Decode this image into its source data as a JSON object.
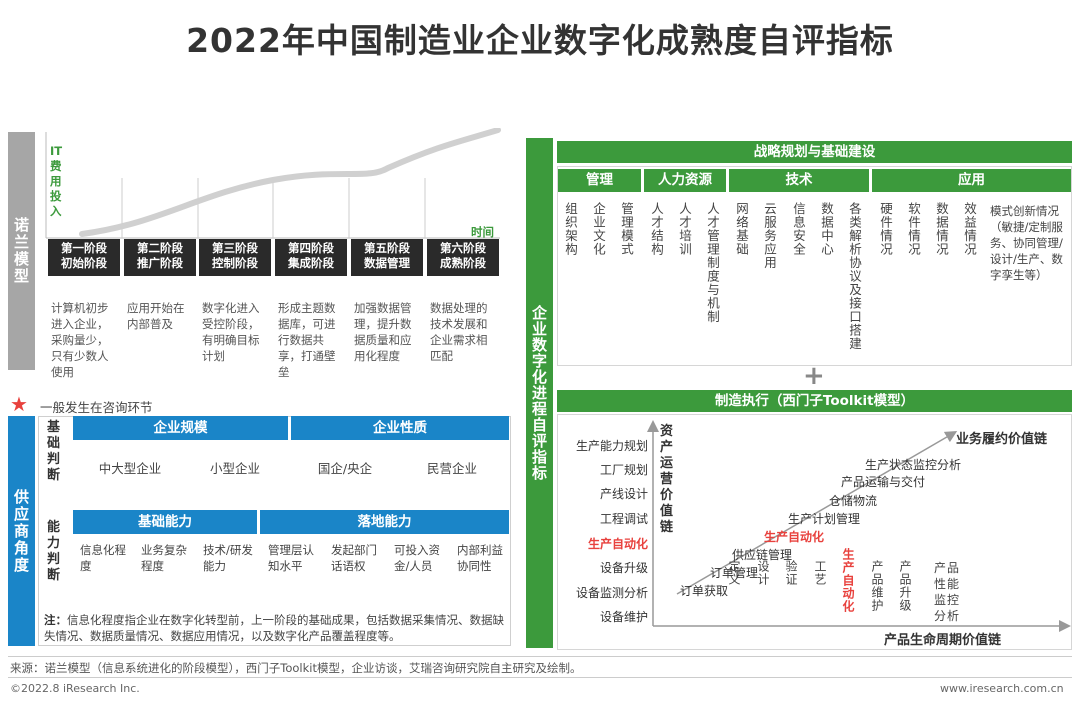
{
  "title": "2022年中国制造业企业数字化成熟度自评指标",
  "nolan": {
    "side_label": "诺兰模型",
    "yaxis": "IT费用投入",
    "xaxis": "时间",
    "stages": [
      {
        "name": "第一阶段",
        "sub": "初始阶段",
        "desc": "计算机初步进入企业，采购量少，只有少数人使用"
      },
      {
        "name": "第二阶段",
        "sub": "推广阶段",
        "desc": "应用开始在内部普及"
      },
      {
        "name": "第三阶段",
        "sub": "控制阶段",
        "desc": "数字化进入受控阶段，有明确目标计划"
      },
      {
        "name": "第四阶段",
        "sub": "集成阶段",
        "desc": "形成主题数据库，可进行数据共享，打通壁垒"
      },
      {
        "name": "第五阶段",
        "sub": "数据管理",
        "desc": "加强数据管理，提升数据质量和应用化程度"
      },
      {
        "name": "第六阶段",
        "sub": "成熟阶段",
        "desc": "数据处理的技术发展和企业需求相匹配"
      }
    ]
  },
  "consult_note": "一般发生在咨询环节",
  "supplier": {
    "side_label": "供应商角度",
    "basic_label": "基础判断",
    "scale": {
      "title": "企业规模",
      "items": [
        "中大型企业",
        "小型企业"
      ]
    },
    "nature": {
      "title": "企业性质",
      "items": [
        "国企/央企",
        "民营企业"
      ]
    },
    "ability_label": "能力判断",
    "base_ability": {
      "title": "基础能力",
      "items": [
        "信息化程度",
        "业务复杂程度",
        "技术/研发能力"
      ]
    },
    "landing": {
      "title": "落地能力",
      "items": [
        "管理层认知水平",
        "发起部门话语权",
        "可投入资金/人员",
        "内部利益协同性"
      ]
    },
    "note_label": "注：",
    "note": "信息化程度指企业在数字化转型前，上一阶段的基础成果，包括数据采集情况、数据缺失情况、数据质量情况、数据应用情况，以及数字化产品覆盖程度等。"
  },
  "right": {
    "side_label": "企业数字化进程自评指标",
    "strategy_title": "战略规划与基础建设",
    "groups": [
      {
        "name": "管理",
        "items": [
          "组织架构",
          "企业文化",
          "管理模式"
        ]
      },
      {
        "name": "人力资源",
        "items": [
          "人才结构",
          "人才培训",
          "人才管理制度与机制"
        ]
      },
      {
        "name": "技术",
        "items": [
          "网络基础",
          "云服务应用",
          "信息安全",
          "数据中心",
          "各类解析协议及接口搭建"
        ]
      },
      {
        "name": "应用",
        "items": [
          "硬件情况",
          "软件情况",
          "数据情况",
          "效益情况"
        ],
        "extra": "模式创新情况（敏捷/定制服务、协同管理/设计/生产、数字孪生等）"
      }
    ],
    "plus": "+",
    "exec_title": "制造执行（西门子Toolkit模型）",
    "y_title": "资产运营价值链",
    "x_title": "产品生命周期价值链",
    "diag_title": "业务履约价值链",
    "y_items": [
      "生产能力规划",
      "工厂规划",
      "产线设计",
      "工程调试",
      "生产自动化",
      "设备升级",
      "设备监测分析",
      "设备维护"
    ],
    "x_items": [
      "定义",
      "设计",
      "验证",
      "工艺",
      "生产自动化",
      "产品维护",
      "产品升级",
      "产品性能监控分析"
    ],
    "diag_items": [
      "订单获取",
      "订单管理",
      "供应链管理",
      "生产自动化",
      "生产计划管理",
      "仓储物流",
      "产品运输与交付",
      "生产状态监控分析"
    ]
  },
  "source": "来源：诺兰模型（信息系统进化的阶段模型），西门子Toolkit模型，企业访谈，艾瑞咨询研究院自主研究及绘制。",
  "copyright": "©2022.8 iResearch Inc.",
  "website": "www.iresearch.com.cn",
  "colors": {
    "green": "#3c9a3c",
    "blue": "#1a85c8",
    "gray": "#a6a6a6",
    "red": "#e8413d"
  }
}
